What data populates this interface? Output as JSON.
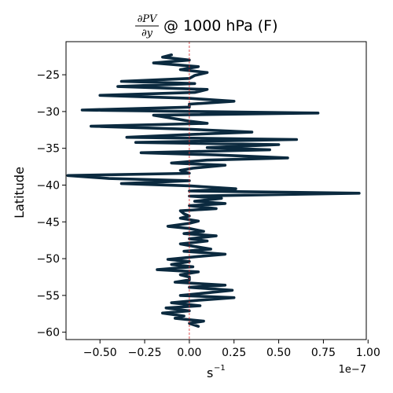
{
  "chart_data": {
    "type": "line",
    "title": {
      "numerator": "∂PV",
      "denominator": "∂y",
      "suffix": "@ 1000 hPa (F)"
    },
    "xlabel": "s",
    "xlabel_superscript": "−1",
    "ylabel": "Latitude",
    "x_offset_text": "1e−7",
    "xlim": [
      -0.69,
      0.99
    ],
    "ylim": [
      -61,
      -20.5
    ],
    "xticks": [
      -0.5,
      -0.25,
      0.0,
      0.25,
      0.5,
      0.75,
      1.0
    ],
    "xtick_labels": [
      "−0.50",
      "−0.25",
      "0.00",
      "0.25",
      "0.50",
      "0.75",
      "1.00"
    ],
    "yticks": [
      -25,
      -30,
      -35,
      -40,
      -45,
      -50,
      -55,
      -60
    ],
    "ytick_labels": [
      "−25",
      "−30",
      "−35",
      "−40",
      "−45",
      "−50",
      "−55",
      "−60"
    ],
    "reference_line": {
      "x": 0,
      "color": "#d62728",
      "style": "dashed"
    },
    "line_color": "#0b2a3f",
    "series": [
      {
        "y": [
          -22.3,
          -22.6,
          -23.0,
          -23.4,
          -23.9,
          -24.3,
          -24.7,
          -25.1,
          -25.5,
          -25.9,
          -26.2,
          -26.6,
          -27.0,
          -27.4,
          -27.8,
          -28.2,
          -28.6,
          -29.0,
          -29.4,
          -29.8,
          -30.2,
          -30.5,
          -30.9,
          -31.3,
          -31.6,
          -32.0,
          -32.4,
          -32.8,
          -33.1,
          -33.5,
          -33.8,
          -34.2,
          -34.5,
          -34.9,
          -35.2,
          -35.6,
          -35.9,
          -36.3,
          -36.6,
          -37.0,
          -37.3,
          -37.7,
          -38.0,
          -38.4,
          -38.7,
          -39.1,
          -39.4,
          -39.8,
          -40.1,
          -40.5,
          -40.8,
          -41.1,
          -41.5,
          -41.8,
          -42.2,
          -42.5,
          -42.8,
          -43.2,
          -43.5,
          -43.9,
          -44.2,
          -44.5,
          -44.9,
          -45.2,
          -45.6,
          -45.9,
          -46.3,
          -46.6,
          -46.9,
          -47.3,
          -47.6,
          -48.0,
          -48.3,
          -48.7,
          -49.0,
          -49.4,
          -49.7,
          -50.1,
          -50.4,
          -50.8,
          -51.1,
          -51.5,
          -51.8,
          -52.2,
          -52.5,
          -52.9,
          -53.2,
          -53.6,
          -53.9,
          -54.3,
          -54.6,
          -55.0,
          -55.3,
          -55.7,
          -56.0,
          -56.4,
          -56.7,
          -57.1,
          -57.4,
          -57.8,
          -58.1,
          -58.5,
          -58.8,
          -59.2
        ],
        "x": [
          -0.1,
          -0.15,
          0.0,
          -0.2,
          0.05,
          -0.05,
          0.1,
          0.03,
          0.0,
          -0.38,
          0.03,
          -0.4,
          0.1,
          0.03,
          -0.5,
          0.0,
          0.25,
          0.0,
          0.0,
          -0.6,
          0.72,
          -0.2,
          -0.1,
          0.0,
          0.1,
          -0.55,
          0.0,
          0.35,
          0.02,
          -0.35,
          0.6,
          -0.3,
          0.5,
          0.1,
          0.45,
          -0.27,
          0.15,
          0.55,
          0.1,
          -0.1,
          0.2,
          0.02,
          -0.05,
          0.0,
          -0.68,
          -0.45,
          0.0,
          -0.38,
          0.0,
          0.26,
          0.0,
          0.95,
          0.0,
          0.18,
          0.03,
          0.2,
          0.0,
          0.15,
          -0.05,
          -0.03,
          0.0,
          -0.05,
          0.05,
          0.0,
          -0.12,
          0.0,
          0.08,
          -0.03,
          0.15,
          0.0,
          0.1,
          -0.05,
          0.02,
          0.12,
          -0.03,
          0.2,
          0.05,
          -0.12,
          0.0,
          -0.1,
          0.02,
          -0.18,
          0.05,
          -0.05,
          0.0,
          0.0,
          -0.08,
          0.2,
          0.0,
          0.24,
          0.12,
          -0.05,
          0.25,
          0.03,
          -0.1,
          0.06,
          -0.13,
          0.0,
          -0.15,
          -0.03,
          -0.08,
          0.08,
          0.0,
          0.05
        ]
      }
    ]
  }
}
